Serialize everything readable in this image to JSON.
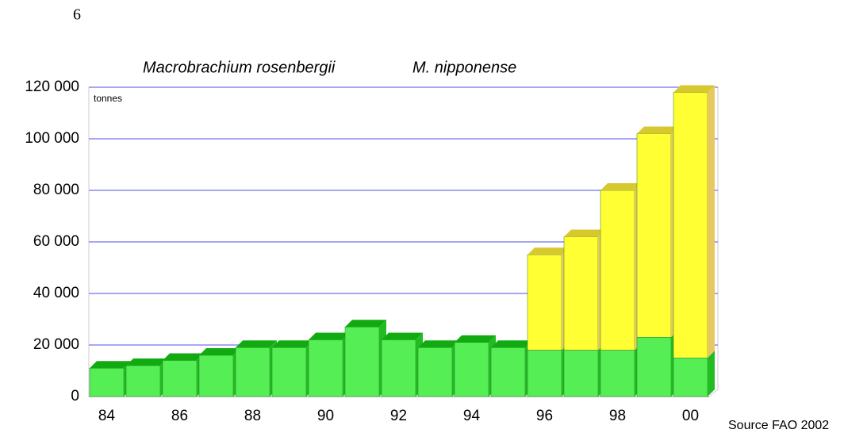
{
  "page_number": "6",
  "chart_data": {
    "type": "bar",
    "stacked": true,
    "unit_label": "tonnes",
    "source": "Source FAO 2002",
    "categories": [
      "84",
      null,
      "86",
      null,
      "88",
      null,
      "90",
      null,
      "92",
      null,
      "94",
      null,
      "96",
      null,
      "98",
      null,
      "00"
    ],
    "series": [
      {
        "name": "Macrobrachium rosenbergii",
        "color": "#55ee55",
        "top_color": "#11aa11",
        "side_color": "#22bb22",
        "values": [
          11000,
          12000,
          14000,
          16000,
          19000,
          19000,
          22000,
          27000,
          22000,
          19000,
          21000,
          19000,
          18000,
          18000,
          18000,
          23000,
          15000
        ]
      },
      {
        "name": "M. nipponense",
        "color": "#ffff33",
        "top_color": "#d8c830",
        "side_color": "#e8c860",
        "values": [
          null,
          null,
          null,
          null,
          null,
          null,
          null,
          null,
          null,
          null,
          null,
          null,
          37000,
          44000,
          62000,
          79000,
          103000
        ]
      }
    ],
    "ylim": [
      0,
      120000
    ],
    "yticks": [
      0,
      {
        "value": 20000,
        "label": "20 000"
      },
      {
        "value": 40000,
        "label": "40 000"
      },
      {
        "value": 60000,
        "label": "60 000"
      },
      {
        "value": 80000,
        "label": "80 000"
      },
      {
        "value": 100000,
        "label": "100 000"
      },
      {
        "value": 120000,
        "label": "120 000"
      }
    ],
    "grid": true,
    "grid_color": "#8888ee"
  }
}
